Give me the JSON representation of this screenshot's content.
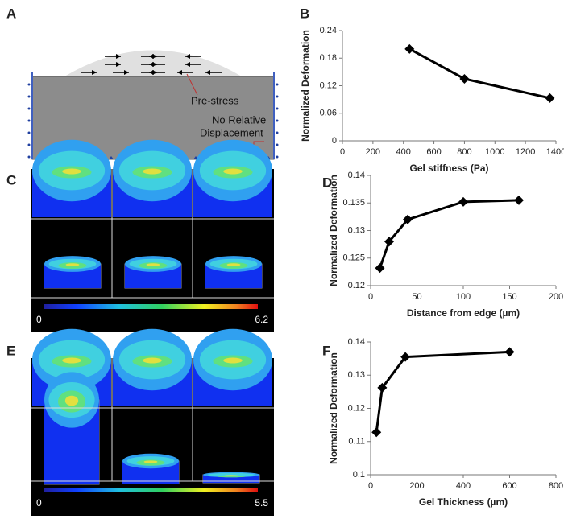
{
  "panel_labels": [
    "A",
    "B",
    "C",
    "D",
    "E",
    "F"
  ],
  "schematic": {
    "labels": [
      "Pre-stress",
      "No Relative",
      "Displacement"
    ]
  },
  "colorbars": [
    {
      "min": 0,
      "max": 6.2
    },
    {
      "min": 0,
      "max": 5.5
    }
  ],
  "chart_data": [
    {
      "type": "line",
      "xlabel": "Gel stiffness (Pa)",
      "ylabel": "Normalized Deformation",
      "color": "#000000",
      "x": [
        440,
        800,
        1360
      ],
      "values": [
        0.2,
        0.135,
        0.093
      ],
      "xlim": [
        0,
        1400
      ],
      "xticks": [
        0,
        200,
        400,
        600,
        800,
        1000,
        1200,
        1400
      ],
      "ylim": [
        0,
        0.24
      ],
      "yticks": [
        0,
        0.06,
        0.12,
        0.18,
        0.24
      ]
    },
    {
      "type": "line",
      "xlabel": "Distance from edge (µm)",
      "ylabel": "Normalized Deformation",
      "color": "#000000",
      "x": [
        10,
        20,
        40,
        100,
        160
      ],
      "values": [
        0.1232,
        0.128,
        0.132,
        0.1352,
        0.1355
      ],
      "xlim": [
        0,
        200
      ],
      "xticks": [
        0,
        50,
        100,
        150,
        200
      ],
      "ylim": [
        0.12,
        0.14
      ],
      "yticks": [
        0.12,
        0.125,
        0.13,
        0.135,
        0.14
      ]
    },
    {
      "type": "line",
      "xlabel": "Gel Thickness (µm)",
      "ylabel": "Normalized Deformation",
      "color": "#000000",
      "x": [
        25,
        50,
        150,
        600
      ],
      "values": [
        0.1128,
        0.1262,
        0.1355,
        0.137
      ],
      "xlim": [
        0,
        800
      ],
      "xticks": [
        0,
        200,
        400,
        600,
        800
      ],
      "ylim": [
        0.1,
        0.14
      ],
      "yticks": [
        0.1,
        0.11,
        0.12,
        0.13,
        0.14
      ]
    }
  ]
}
